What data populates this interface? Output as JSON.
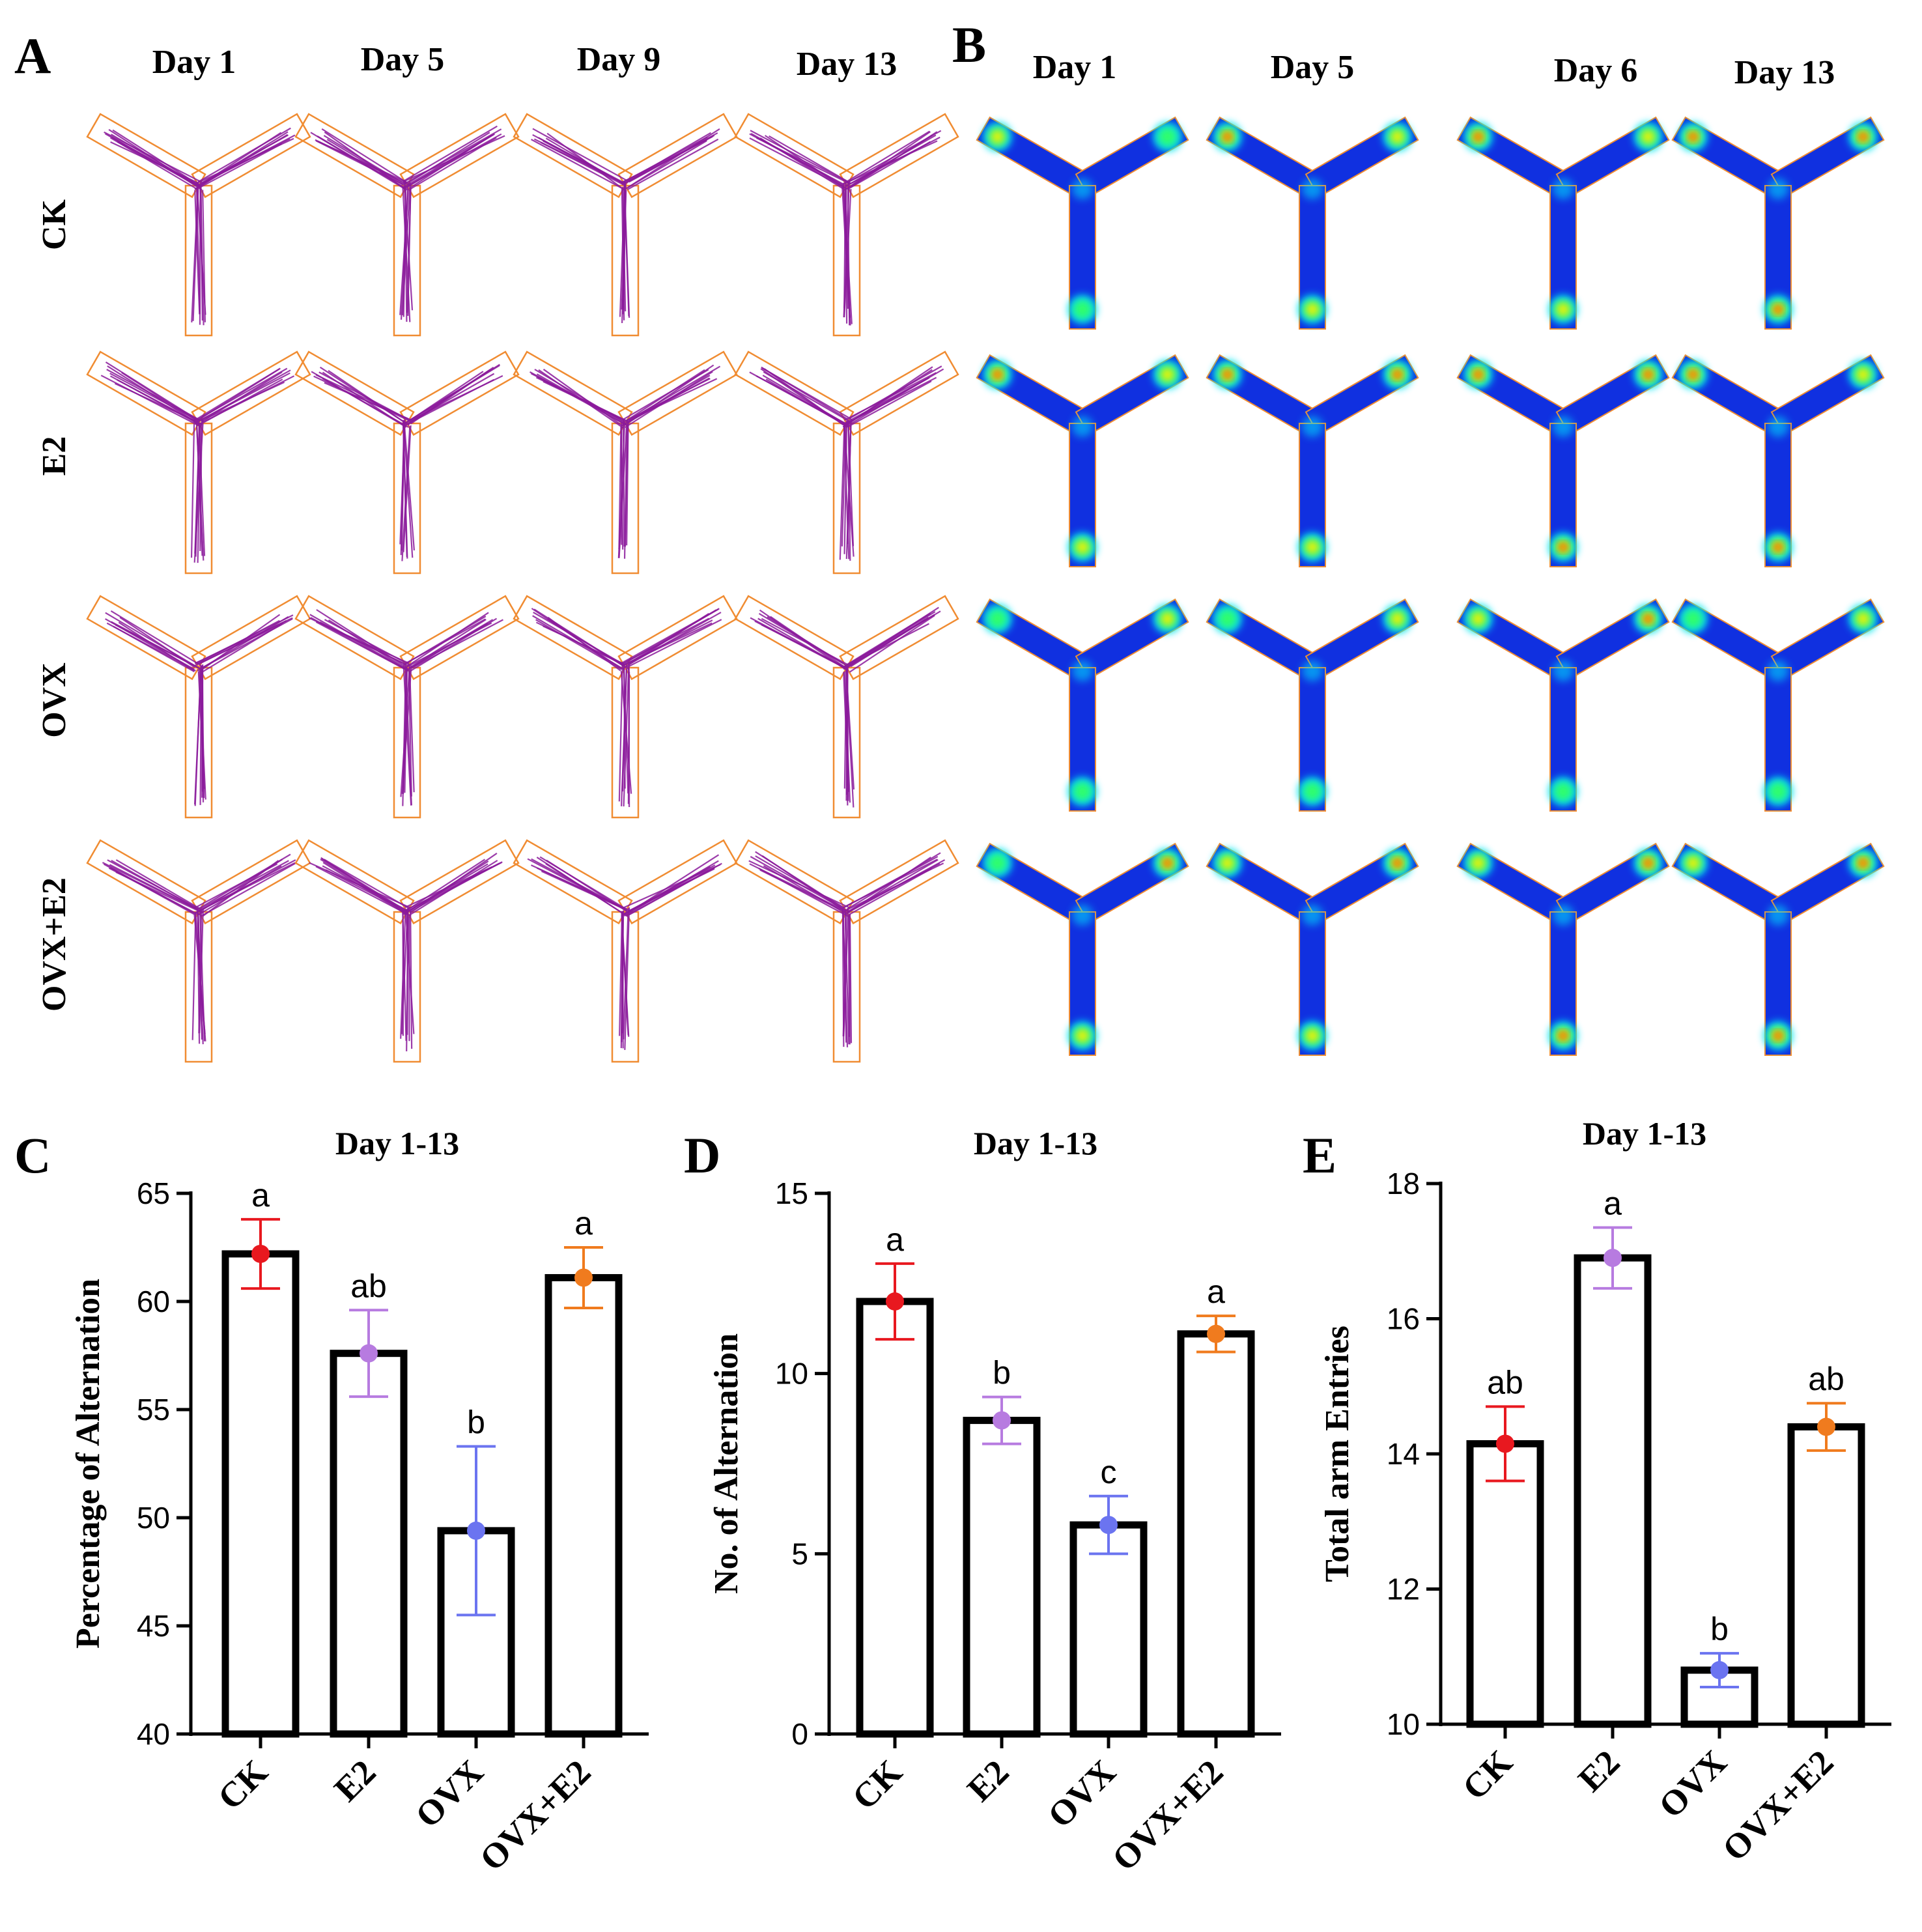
{
  "panel_letters": [
    "A",
    "B",
    "C",
    "D",
    "E"
  ],
  "panelA": {
    "days": [
      "Day 1",
      "Day 5",
      "Day 9",
      "Day 13"
    ],
    "groups": [
      "CK",
      "E2",
      "OVX",
      "OVX+E2"
    ],
    "track_color": "#8B1A9B",
    "box_color": "#F08C32"
  },
  "panelB": {
    "days": [
      "Day 1",
      "Day 5",
      "Day 6",
      "Day 13"
    ],
    "groups": [
      "CK",
      "E2",
      "OVX",
      "OVX+E2"
    ],
    "arm_color": "#1030E0",
    "hot_colors": [
      "#00E5FF",
      "#33FF66",
      "#FFEE00",
      "#FF2200"
    ],
    "hotspots": {
      "CK": [
        [
          0.45,
          0.3,
          0.25
        ],
        [
          0.65,
          0.55,
          0.5
        ],
        [
          0.7,
          0.6,
          0.55
        ],
        [
          0.75,
          0.7,
          0.75
        ]
      ],
      "E2": [
        [
          0.8,
          0.6,
          0.55
        ],
        [
          0.85,
          0.7,
          0.6
        ],
        [
          0.8,
          0.75,
          0.65
        ],
        [
          0.95,
          0.6,
          0.65
        ]
      ],
      "OVX": [
        [
          0.2,
          0.55,
          0.05
        ],
        [
          0.2,
          0.55,
          0.05
        ],
        [
          0.45,
          0.75,
          0.25
        ],
        [
          0.1,
          0.55,
          0.05
        ]
      ],
      "OVX+E2": [
        [
          0.25,
          0.65,
          0.4
        ],
        [
          0.55,
          0.85,
          0.5
        ],
        [
          0.6,
          0.75,
          0.7
        ],
        [
          0.5,
          0.9,
          0.65
        ]
      ]
    }
  },
  "group_colors": {
    "CK": "#E8181F",
    "E2": "#B77BE0",
    "OVX": "#6B74F0",
    "OVX+E2": "#F07B1E"
  },
  "chart_data": [
    {
      "panel": "C",
      "type": "bar",
      "title": "Day 1-13",
      "xlabel": "",
      "ylabel": "Percentage of Alternation",
      "categories": [
        "CK",
        "E2",
        "OVX",
        "OVX+E2"
      ],
      "values": [
        62.2,
        57.6,
        49.4,
        61.1
      ],
      "errors": [
        1.6,
        2.0,
        3.9,
        1.4
      ],
      "letters": [
        "a",
        "ab",
        "b",
        "a"
      ],
      "ylim": [
        40,
        65
      ],
      "yticks": [
        40,
        45,
        50,
        55,
        60,
        65
      ]
    },
    {
      "panel": "D",
      "type": "bar",
      "title": "Day 1-13",
      "xlabel": "",
      "ylabel": "No. of Alternation",
      "categories": [
        "CK",
        "E2",
        "OVX",
        "OVX+E2"
      ],
      "values": [
        12.0,
        8.7,
        5.8,
        11.1
      ],
      "errors": [
        1.05,
        0.65,
        0.8,
        0.5
      ],
      "letters": [
        "a",
        "b",
        "c",
        "a"
      ],
      "ylim": [
        0,
        15
      ],
      "yticks": [
        0,
        5,
        10,
        15
      ]
    },
    {
      "panel": "E",
      "type": "bar",
      "title": "Day 1-13",
      "xlabel": "",
      "ylabel": "Total arm Entries",
      "categories": [
        "CK",
        "E2",
        "OVX",
        "OVX+E2"
      ],
      "values": [
        14.15,
        16.9,
        10.8,
        14.4
      ],
      "errors": [
        0.55,
        0.45,
        0.25,
        0.35
      ],
      "letters": [
        "ab",
        "a",
        "b",
        "ab"
      ],
      "ylim": [
        10,
        18
      ],
      "yticks": [
        10,
        12,
        14,
        16,
        18
      ]
    }
  ]
}
